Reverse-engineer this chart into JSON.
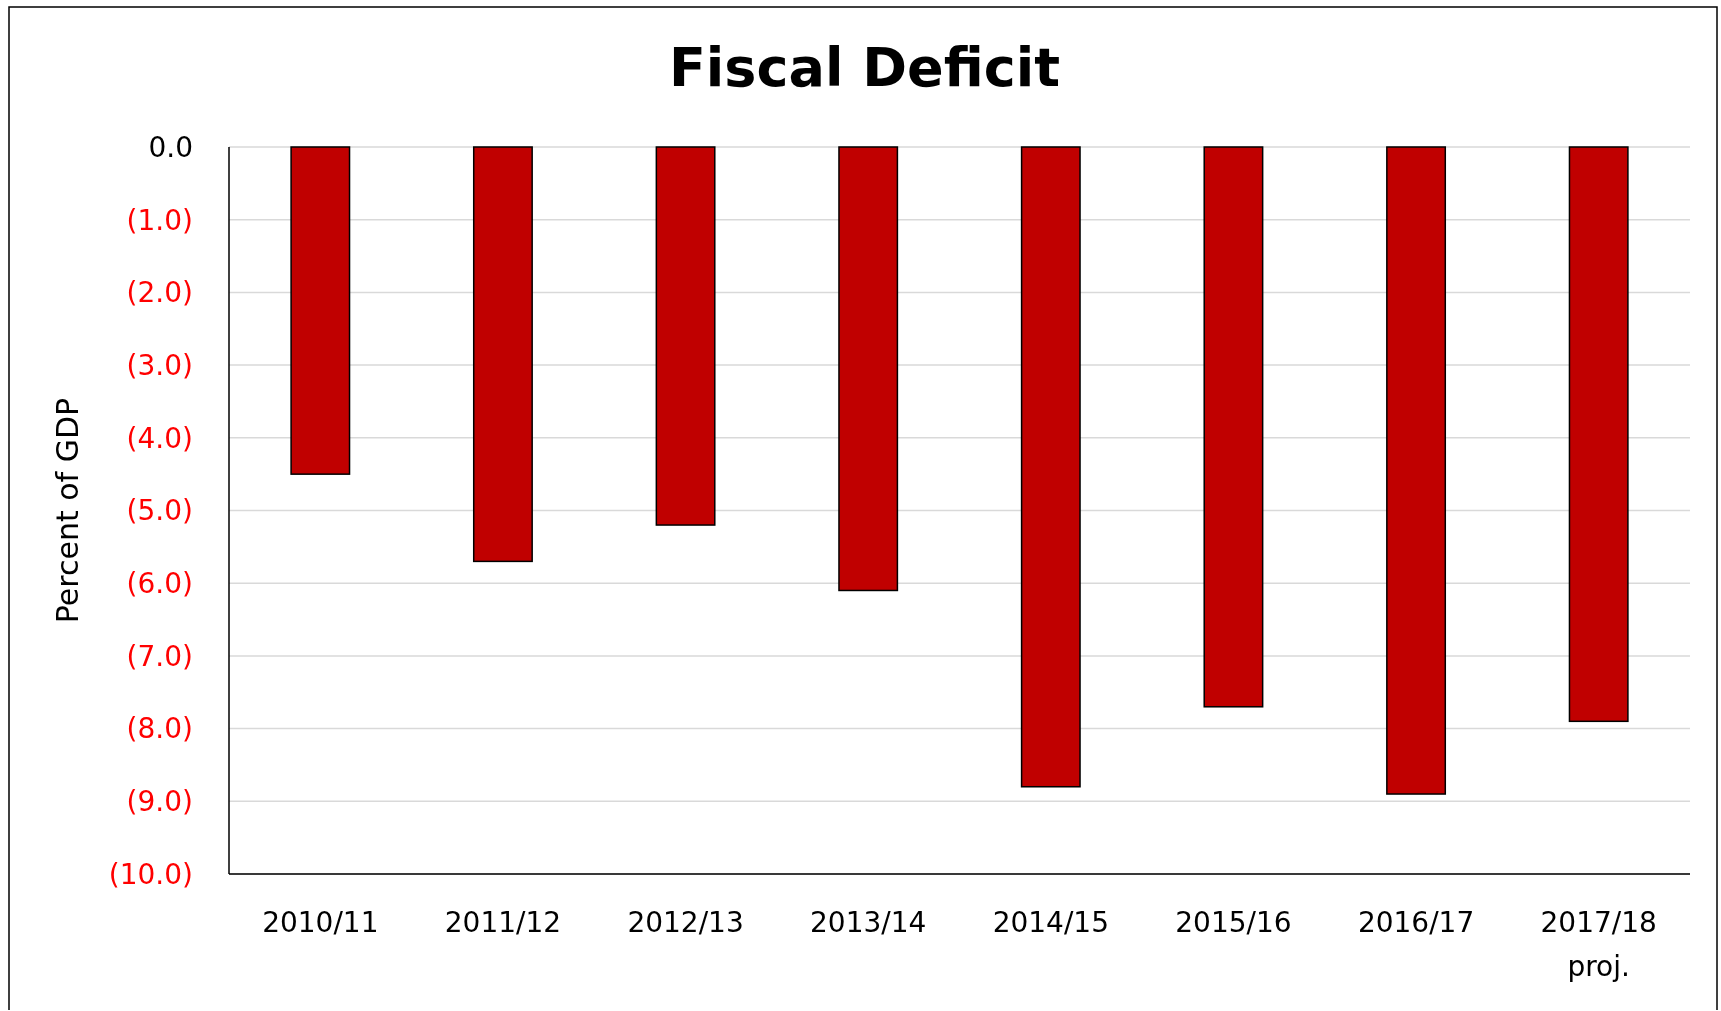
{
  "chart_data": {
    "type": "bar",
    "title": "Fiscal Deficit",
    "ylabel": "Percent of GDP",
    "categories": [
      "2010/11",
      "2011/12",
      "2012/13",
      "2013/14",
      "2014/15",
      "2015/16",
      "2016/17",
      "2017/18\nproj."
    ],
    "values": [
      -4.5,
      -5.7,
      -5.2,
      -6.1,
      -8.8,
      -7.7,
      -8.9,
      -7.9
    ],
    "color": "#c00000",
    "ylim": [
      -10,
      0
    ],
    "yticks": [
      {
        "value": 0,
        "label": "0.0"
      },
      {
        "value": -1,
        "label": "(1.0)"
      },
      {
        "value": -2,
        "label": "(2.0)"
      },
      {
        "value": -3,
        "label": "(3.0)"
      },
      {
        "value": -4,
        "label": "(4.0)"
      },
      {
        "value": -5,
        "label": "(5.0)"
      },
      {
        "value": -6,
        "label": "(6.0)"
      },
      {
        "value": -7,
        "label": "(7.0)"
      },
      {
        "value": -8,
        "label": "(8.0)"
      },
      {
        "value": -9,
        "label": "(9.0)"
      },
      {
        "value": -10,
        "label": "(10.0)"
      }
    ],
    "grid": "y"
  }
}
